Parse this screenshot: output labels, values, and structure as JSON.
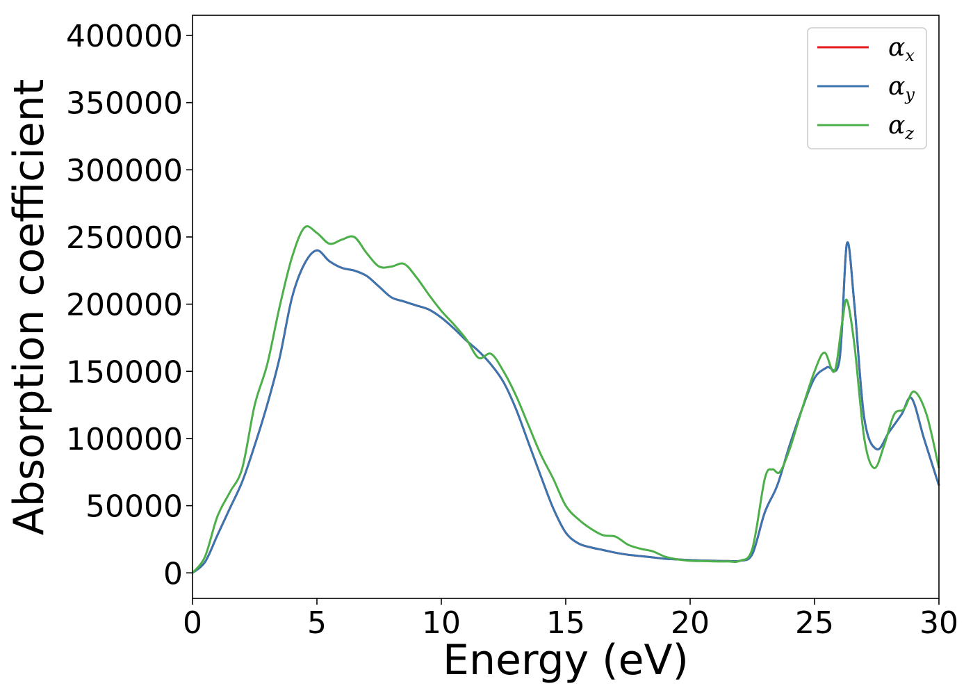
{
  "chart_data": {
    "type": "line",
    "title": "",
    "xlabel": "Energy (eV)",
    "ylabel": "Absorption coefficient",
    "xlim": [
      0,
      30
    ],
    "ylim": [
      -19000,
      415000
    ],
    "grid": false,
    "legend_position": "top-right",
    "x_ticks": [
      "0",
      "5",
      "10",
      "15",
      "20",
      "25",
      "30"
    ],
    "y_ticks": [
      "0",
      "50000",
      "100000",
      "150000",
      "200000",
      "250000",
      "300000",
      "350000",
      "400000"
    ],
    "series": [
      {
        "name": "α_x",
        "color": "#e41a1c",
        "points": [
          [
            0,
            0
          ],
          [
            0.5,
            8000
          ],
          [
            1,
            28000
          ],
          [
            1.5,
            48000
          ],
          [
            2,
            68000
          ],
          [
            2.5,
            95000
          ],
          [
            3,
            125000
          ],
          [
            3.5,
            160000
          ],
          [
            4,
            205000
          ],
          [
            4.5,
            230000
          ],
          [
            5,
            240000
          ],
          [
            5.5,
            232000
          ],
          [
            6,
            227000
          ],
          [
            6.5,
            225000
          ],
          [
            7,
            221000
          ],
          [
            7.5,
            213000
          ],
          [
            8,
            205000
          ],
          [
            8.5,
            202000
          ],
          [
            9,
            199000
          ],
          [
            9.5,
            196000
          ],
          [
            10,
            190000
          ],
          [
            10.5,
            182000
          ],
          [
            11,
            173000
          ],
          [
            11.5,
            165000
          ],
          [
            12,
            155000
          ],
          [
            12.5,
            142000
          ],
          [
            13,
            122000
          ],
          [
            13.5,
            97000
          ],
          [
            14,
            72000
          ],
          [
            14.5,
            48000
          ],
          [
            15,
            30000
          ],
          [
            15.5,
            22000
          ],
          [
            16,
            19000
          ],
          [
            16.5,
            17000
          ],
          [
            17,
            15000
          ],
          [
            17.5,
            13500
          ],
          [
            18,
            12500
          ],
          [
            18.5,
            11500
          ],
          [
            19,
            10500
          ],
          [
            19.5,
            10000
          ],
          [
            20,
            9500
          ],
          [
            20.5,
            9200
          ],
          [
            21,
            9000
          ],
          [
            21.5,
            8800
          ],
          [
            22,
            9000
          ],
          [
            22.5,
            14000
          ],
          [
            23,
            45000
          ],
          [
            23.5,
            65000
          ],
          [
            24,
            95000
          ],
          [
            24.5,
            122000
          ],
          [
            25,
            145000
          ],
          [
            25.5,
            153000
          ],
          [
            26,
            158000
          ],
          [
            26.3,
            245000
          ],
          [
            26.6,
            200000
          ],
          [
            27,
            115000
          ],
          [
            27.5,
            92000
          ],
          [
            28,
            105000
          ],
          [
            28.5,
            118000
          ],
          [
            28.9,
            130000
          ],
          [
            29.4,
            100000
          ],
          [
            30,
            65000
          ]
        ]
      },
      {
        "name": "α_y",
        "color": "#3a75b0",
        "points": [
          [
            0,
            0
          ],
          [
            0.5,
            8000
          ],
          [
            1,
            28000
          ],
          [
            1.5,
            48000
          ],
          [
            2,
            68000
          ],
          [
            2.5,
            95000
          ],
          [
            3,
            125000
          ],
          [
            3.5,
            160000
          ],
          [
            4,
            205000
          ],
          [
            4.5,
            230000
          ],
          [
            5,
            240000
          ],
          [
            5.5,
            232000
          ],
          [
            6,
            227000
          ],
          [
            6.5,
            225000
          ],
          [
            7,
            221000
          ],
          [
            7.5,
            213000
          ],
          [
            8,
            205000
          ],
          [
            8.5,
            202000
          ],
          [
            9,
            199000
          ],
          [
            9.5,
            196000
          ],
          [
            10,
            190000
          ],
          [
            10.5,
            182000
          ],
          [
            11,
            173000
          ],
          [
            11.5,
            165000
          ],
          [
            12,
            155000
          ],
          [
            12.5,
            142000
          ],
          [
            13,
            122000
          ],
          [
            13.5,
            97000
          ],
          [
            14,
            72000
          ],
          [
            14.5,
            48000
          ],
          [
            15,
            30000
          ],
          [
            15.5,
            22000
          ],
          [
            16,
            19000
          ],
          [
            16.5,
            17000
          ],
          [
            17,
            15000
          ],
          [
            17.5,
            13500
          ],
          [
            18,
            12500
          ],
          [
            18.5,
            11500
          ],
          [
            19,
            10500
          ],
          [
            19.5,
            10000
          ],
          [
            20,
            9500
          ],
          [
            20.5,
            9200
          ],
          [
            21,
            9000
          ],
          [
            21.5,
            8800
          ],
          [
            22,
            9000
          ],
          [
            22.5,
            14000
          ],
          [
            23,
            45000
          ],
          [
            23.5,
            65000
          ],
          [
            24,
            95000
          ],
          [
            24.5,
            122000
          ],
          [
            25,
            145000
          ],
          [
            25.5,
            153000
          ],
          [
            26,
            158000
          ],
          [
            26.3,
            245000
          ],
          [
            26.6,
            200000
          ],
          [
            27,
            115000
          ],
          [
            27.5,
            92000
          ],
          [
            28,
            105000
          ],
          [
            28.5,
            118000
          ],
          [
            28.9,
            130000
          ],
          [
            29.4,
            100000
          ],
          [
            30,
            65000
          ]
        ]
      },
      {
        "name": "α_z",
        "color": "#4daf4a",
        "points": [
          [
            0,
            0
          ],
          [
            0.5,
            12000
          ],
          [
            1,
            42000
          ],
          [
            1.5,
            60000
          ],
          [
            2,
            78000
          ],
          [
            2.5,
            125000
          ],
          [
            3,
            155000
          ],
          [
            3.5,
            198000
          ],
          [
            4,
            235000
          ],
          [
            4.5,
            257000
          ],
          [
            5,
            253000
          ],
          [
            5.5,
            245000
          ],
          [
            6,
            248000
          ],
          [
            6.5,
            250000
          ],
          [
            7,
            238000
          ],
          [
            7.5,
            228000
          ],
          [
            8,
            228000
          ],
          [
            8.5,
            230000
          ],
          [
            9,
            220000
          ],
          [
            9.5,
            207000
          ],
          [
            10,
            195000
          ],
          [
            10.5,
            185000
          ],
          [
            11,
            174000
          ],
          [
            11.5,
            160000
          ],
          [
            12,
            163000
          ],
          [
            12.5,
            150000
          ],
          [
            13,
            132000
          ],
          [
            13.5,
            110000
          ],
          [
            14,
            88000
          ],
          [
            14.5,
            70000
          ],
          [
            15,
            50000
          ],
          [
            15.5,
            40000
          ],
          [
            16,
            33000
          ],
          [
            16.5,
            28000
          ],
          [
            17,
            27000
          ],
          [
            17.5,
            21000
          ],
          [
            18,
            18000
          ],
          [
            18.5,
            16000
          ],
          [
            19,
            12000
          ],
          [
            19.5,
            10000
          ],
          [
            20,
            9000
          ],
          [
            20.5,
            8800
          ],
          [
            21,
            8500
          ],
          [
            21.5,
            8500
          ],
          [
            22,
            9000
          ],
          [
            22.5,
            18000
          ],
          [
            23,
            70000
          ],
          [
            23.3,
            77000
          ],
          [
            23.6,
            75000
          ],
          [
            24,
            92000
          ],
          [
            24.5,
            122000
          ],
          [
            25,
            150000
          ],
          [
            25.4,
            164000
          ],
          [
            25.8,
            150000
          ],
          [
            26.1,
            185000
          ],
          [
            26.3,
            203000
          ],
          [
            26.6,
            170000
          ],
          [
            27,
            100000
          ],
          [
            27.4,
            78000
          ],
          [
            27.8,
            95000
          ],
          [
            28.2,
            118000
          ],
          [
            28.6,
            122000
          ],
          [
            29,
            135000
          ],
          [
            29.5,
            118000
          ],
          [
            30,
            78000
          ]
        ]
      }
    ]
  }
}
